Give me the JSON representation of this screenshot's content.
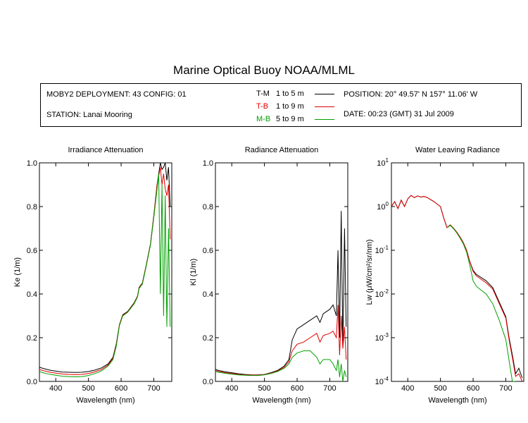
{
  "header": {
    "title": "Marine Optical Buoy NOAA/MLML",
    "deployment": "MOBY2 DEPLOYMENT: 43 CONFIG: 01",
    "station": "STATION: Lanai Mooring",
    "position": "POSITION: 20° 49.57' N   157° 11.06' W",
    "date": "DATE: 00:23 (GMT) 31 Jul 2009",
    "legend": [
      {
        "id": "T-M",
        "range": "1 to 5  m",
        "color": "#000000"
      },
      {
        "id": "T-B",
        "range": "1 to 9  m",
        "color": "#e00000"
      },
      {
        "id": "M-B",
        "range": "5 to 9  m",
        "color": "#00a000"
      }
    ]
  },
  "chart_data": [
    {
      "type": "line",
      "title": "Irradiance Attenuation",
      "xlabel": "Wavelength (nm)",
      "ylabel": "Ke  (1/m)",
      "xlim": [
        350,
        755
      ],
      "ylim": [
        0,
        1
      ],
      "xticks": [
        "400",
        "500",
        "600",
        "700"
      ],
      "yticks": [
        "0.0",
        "0.2",
        "0.4",
        "0.6",
        "0.8",
        "1.0"
      ],
      "series": [
        {
          "name": "T-M",
          "color": "#000000",
          "x": [
            350,
            360,
            380,
            400,
            420,
            440,
            460,
            480,
            500,
            520,
            540,
            560,
            575,
            585,
            595,
            605,
            620,
            640,
            650,
            655,
            660,
            665,
            675,
            690,
            700,
            710,
            720,
            725,
            730,
            735,
            740,
            745,
            750
          ],
          "y": [
            0.065,
            0.06,
            0.052,
            0.047,
            0.043,
            0.042,
            0.041,
            0.042,
            0.045,
            0.052,
            0.062,
            0.08,
            0.11,
            0.17,
            0.26,
            0.305,
            0.32,
            0.36,
            0.39,
            0.43,
            0.44,
            0.45,
            0.52,
            0.63,
            0.76,
            0.9,
            1.0,
            0.97,
            0.98,
            1.0,
            0.92,
            0.98,
            0.8
          ]
        },
        {
          "name": "T-B",
          "color": "#e00000",
          "x": [
            350,
            360,
            380,
            400,
            420,
            440,
            460,
            480,
            500,
            520,
            540,
            560,
            575,
            585,
            595,
            605,
            620,
            640,
            650,
            655,
            660,
            665,
            675,
            690,
            700,
            710,
            720,
            725,
            730,
            735,
            740,
            745,
            750
          ],
          "y": [
            0.055,
            0.05,
            0.043,
            0.038,
            0.034,
            0.032,
            0.031,
            0.032,
            0.036,
            0.044,
            0.055,
            0.075,
            0.105,
            0.165,
            0.26,
            0.302,
            0.318,
            0.357,
            0.388,
            0.428,
            0.438,
            0.448,
            0.518,
            0.628,
            0.758,
            0.9,
            0.98,
            0.9,
            0.95,
            0.88,
            0.85,
            0.9,
            0.65
          ]
        },
        {
          "name": "M-B",
          "color": "#00a000",
          "x": [
            350,
            360,
            380,
            400,
            420,
            440,
            460,
            480,
            500,
            520,
            540,
            560,
            575,
            585,
            595,
            605,
            620,
            640,
            650,
            655,
            660,
            665,
            675,
            690,
            700,
            710,
            715,
            720,
            725,
            730,
            735,
            740,
            745,
            750
          ],
          "y": [
            0.045,
            0.04,
            0.033,
            0.028,
            0.024,
            0.022,
            0.021,
            0.022,
            0.027,
            0.036,
            0.048,
            0.07,
            0.1,
            0.16,
            0.255,
            0.3,
            0.316,
            0.355,
            0.386,
            0.425,
            0.435,
            0.445,
            0.515,
            0.625,
            0.75,
            0.88,
            0.95,
            0.4,
            0.9,
            0.3,
            0.85,
            0.25,
            0.7,
            0.25
          ]
        }
      ]
    },
    {
      "type": "line",
      "title": "Radiance Attenuation",
      "xlabel": "Wavelength (nm)",
      "ylabel": "Kl  (1/m)",
      "xlim": [
        350,
        755
      ],
      "ylim": [
        0,
        1
      ],
      "xticks": [
        "400",
        "500",
        "600",
        "700"
      ],
      "yticks": [
        "0.0",
        "0.2",
        "0.4",
        "0.6",
        "0.8",
        "1.0"
      ],
      "series": [
        {
          "name": "T-M",
          "color": "#000000",
          "x": [
            350,
            360,
            380,
            400,
            420,
            440,
            460,
            480,
            500,
            520,
            540,
            560,
            575,
            585,
            600,
            620,
            640,
            660,
            670,
            680,
            700,
            710,
            720,
            725,
            730,
            735,
            740,
            745,
            750
          ],
          "y": [
            0.055,
            0.05,
            0.044,
            0.04,
            0.035,
            0.032,
            0.03,
            0.03,
            0.032,
            0.04,
            0.05,
            0.07,
            0.1,
            0.19,
            0.24,
            0.26,
            0.28,
            0.3,
            0.27,
            0.31,
            0.33,
            0.35,
            0.3,
            0.6,
            0.2,
            0.78,
            0.15,
            0.7,
            0.25
          ]
        },
        {
          "name": "T-B",
          "color": "#e00000",
          "x": [
            350,
            360,
            380,
            400,
            420,
            440,
            460,
            480,
            500,
            520,
            540,
            560,
            575,
            585,
            600,
            620,
            640,
            660,
            670,
            680,
            700,
            710,
            720,
            725,
            730,
            735,
            740,
            745,
            750
          ],
          "y": [
            0.05,
            0.046,
            0.04,
            0.036,
            0.032,
            0.03,
            0.029,
            0.029,
            0.031,
            0.038,
            0.047,
            0.065,
            0.09,
            0.14,
            0.17,
            0.18,
            0.2,
            0.22,
            0.18,
            0.21,
            0.22,
            0.23,
            0.2,
            0.35,
            0.12,
            0.3,
            0.15,
            0.25,
            0.1
          ]
        },
        {
          "name": "M-B",
          "color": "#00a000",
          "x": [
            350,
            360,
            380,
            400,
            420,
            440,
            460,
            480,
            500,
            520,
            540,
            560,
            575,
            585,
            600,
            620,
            640,
            660,
            670,
            680,
            700,
            710,
            720,
            725,
            730,
            735,
            740,
            745,
            750
          ],
          "y": [
            0.045,
            0.042,
            0.037,
            0.033,
            0.03,
            0.028,
            0.027,
            0.027,
            0.03,
            0.036,
            0.045,
            0.06,
            0.08,
            0.11,
            0.13,
            0.14,
            0.14,
            0.11,
            0.08,
            0.1,
            0.1,
            0.08,
            0.05,
            0.1,
            0.02,
            0.08,
            0.0,
            0.05,
            0.02
          ]
        }
      ]
    },
    {
      "type": "line",
      "title": "Water Leaving Radiance",
      "xlabel": "Wavelength (nm)",
      "ylabel": "Lw  (μW/cm²/sr/nm)",
      "xlim": [
        350,
        755
      ],
      "ylim": [
        0.0001,
        10
      ],
      "yscale": "log",
      "xticks": [
        "400",
        "500",
        "600",
        "700"
      ],
      "yticks": [
        "10-4",
        "10-3",
        "10-2",
        "10-1",
        "100",
        "101"
      ],
      "series": [
        {
          "name": "T-M",
          "color": "#000000",
          "x": [
            350,
            360,
            370,
            380,
            390,
            400,
            410,
            420,
            430,
            440,
            450,
            460,
            480,
            500,
            510,
            520,
            530,
            540,
            550,
            560,
            570,
            580,
            590,
            600,
            610,
            620,
            640,
            660,
            680,
            700,
            710,
            720,
            730,
            740,
            750
          ],
          "y": [
            1.0,
            1.3,
            0.9,
            1.4,
            1.0,
            1.5,
            1.8,
            1.6,
            1.75,
            1.65,
            1.7,
            1.6,
            1.3,
            1.0,
            0.55,
            0.33,
            0.38,
            0.32,
            0.26,
            0.2,
            0.15,
            0.1,
            0.055,
            0.035,
            0.028,
            0.025,
            0.02,
            0.014,
            0.0065,
            0.003,
            0.001,
            0.0004,
            0.00015,
            0.0002,
            0.00012
          ]
        },
        {
          "name": "T-B",
          "color": "#e00000",
          "x": [
            350,
            360,
            370,
            380,
            390,
            400,
            410,
            420,
            430,
            440,
            450,
            460,
            480,
            500,
            510,
            520,
            530,
            540,
            550,
            560,
            570,
            580,
            590,
            600,
            610,
            620,
            640,
            660,
            680,
            700,
            710,
            720,
            730,
            740,
            750
          ],
          "y": [
            1.0,
            1.3,
            0.9,
            1.4,
            1.0,
            1.5,
            1.8,
            1.6,
            1.75,
            1.65,
            1.7,
            1.6,
            1.3,
            1.0,
            0.55,
            0.33,
            0.38,
            0.32,
            0.26,
            0.2,
            0.15,
            0.1,
            0.055,
            0.033,
            0.026,
            0.023,
            0.018,
            0.013,
            0.006,
            0.0028,
            0.0009,
            0.00035,
            0.00013,
            0.00015,
            0.0001
          ]
        },
        {
          "name": "M-B",
          "color": "#00a000",
          "x": [
            520,
            530,
            540,
            550,
            560,
            570,
            580,
            590,
            600,
            610,
            620,
            640,
            660,
            680,
            700,
            710,
            720,
            730
          ],
          "y": [
            0.33,
            0.37,
            0.31,
            0.25,
            0.19,
            0.14,
            0.09,
            0.045,
            0.02,
            0.015,
            0.013,
            0.01,
            0.006,
            0.0025,
            0.0009,
            0.0003,
            0.0001,
            0.0001
          ]
        }
      ]
    }
  ]
}
